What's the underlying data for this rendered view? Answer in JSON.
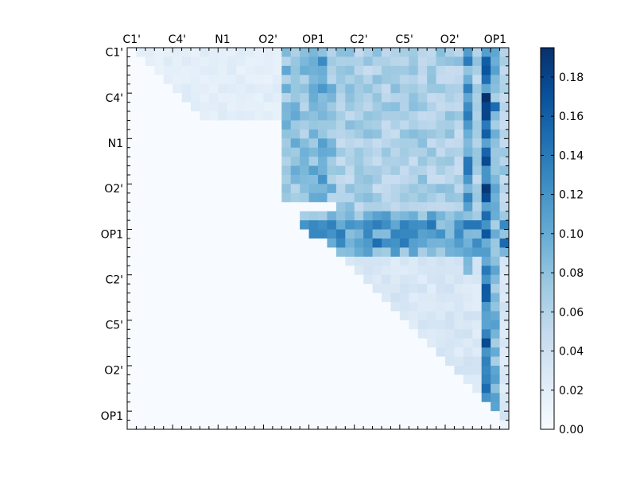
{
  "chart_data": {
    "type": "heatmap",
    "title": "",
    "xlabel": "",
    "ylabel": "",
    "x_tick_labels": [
      "C1'",
      "C4'",
      "N1",
      "O2'",
      "OP1",
      "C2'",
      "C5'",
      "O2'",
      "OP1"
    ],
    "y_tick_labels": [
      "C1'",
      "C4'",
      "N1",
      "O2'",
      "OP1",
      "C2'",
      "C5'",
      "O2'",
      "OP1"
    ],
    "matrix_size": 42,
    "tick_spacing": 5,
    "value_range": [
      0.0,
      0.195
    ],
    "colormap": "Blues",
    "colorbar": {
      "ticks": [
        0.0,
        0.02,
        0.04,
        0.06,
        0.08,
        0.1,
        0.12,
        0.14,
        0.16,
        0.18
      ],
      "tick_labels": [
        "0.00",
        "0.02",
        "0.04",
        "0.06",
        "0.08",
        "0.10",
        "0.12",
        "0.14",
        "0.16",
        "0.18"
      ]
    },
    "structure": "upper-triangular",
    "blocks": [
      {
        "rows": [
          0,
          8
        ],
        "cols": [
          1,
          17
        ],
        "value": 0.02
      },
      {
        "rows": [
          0,
          17
        ],
        "cols": [
          17,
          24
        ],
        "value": 0.08
      },
      {
        "rows": [
          0,
          23
        ],
        "cols": [
          23,
          42
        ],
        "value": 0.065
      },
      {
        "rows": [
          18,
          19
        ],
        "cols": [
          18,
          42
        ],
        "value": 0.09
      },
      {
        "rows": [
          19,
          21
        ],
        "cols": [
          20,
          42
        ],
        "value": 0.11
      },
      {
        "rows": [
          21,
          22
        ],
        "cols": [
          22,
          42
        ],
        "value": 0.12
      },
      {
        "rows": [
          22,
          23
        ],
        "cols": [
          23,
          42
        ],
        "value": 0.09
      },
      {
        "rows": [
          23,
          42
        ],
        "cols": [
          23,
          42
        ],
        "value": 0.03
      }
    ],
    "stripes": [
      {
        "col": 20,
        "rows": [
          0,
          15
        ],
        "value": 0.09
      },
      {
        "col": 21,
        "rows": [
          0,
          15
        ],
        "value": 0.1
      },
      {
        "col": 37,
        "rows": [
          0,
          25
        ],
        "value": 0.11
      },
      {
        "col": 39,
        "rows": [
          0,
          40
        ],
        "value": 0.14
      },
      {
        "col": 40,
        "rows": [
          0,
          40
        ],
        "value": 0.09
      }
    ],
    "peaks": [
      {
        "row": 5,
        "col": 39,
        "value": 0.195
      },
      {
        "row": 7,
        "col": 39,
        "value": 0.18
      },
      {
        "row": 15,
        "col": 39,
        "value": 0.19
      },
      {
        "row": 16,
        "col": 39,
        "value": 0.175
      },
      {
        "row": 6,
        "col": 40,
        "value": 0.15
      },
      {
        "row": 9,
        "col": 39,
        "value": 0.16
      },
      {
        "row": 19,
        "col": 19,
        "value": 0.12
      },
      {
        "row": 20,
        "col": 20,
        "value": 0.13
      },
      {
        "row": 20,
        "col": 21,
        "value": 0.13
      },
      {
        "row": 37,
        "col": 39,
        "value": 0.15
      },
      {
        "row": 41,
        "col": 41,
        "value": 0.01
      }
    ]
  }
}
